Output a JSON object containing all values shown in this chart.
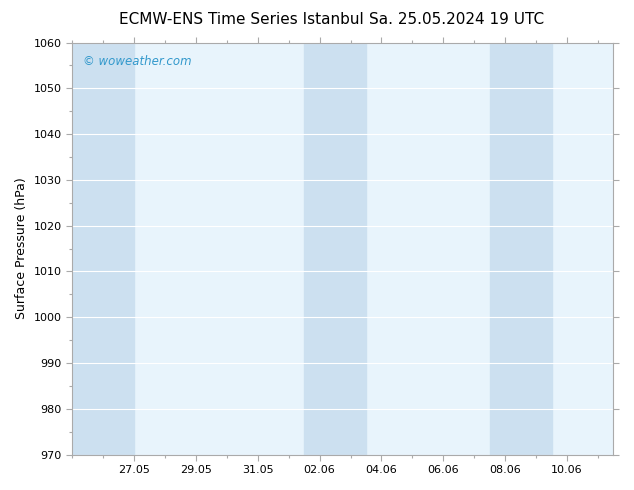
{
  "title_left": "ECMW-ENS Time Series Istanbul",
  "title_right": "Sa. 25.05.2024 19 UTC",
  "ylabel": "Surface Pressure (hPa)",
  "ylim": [
    970,
    1060
  ],
  "yticks": [
    970,
    980,
    990,
    1000,
    1010,
    1020,
    1030,
    1040,
    1050,
    1060
  ],
  "xtick_labels": [
    "27.05",
    "29.05",
    "31.05",
    "02.06",
    "04.06",
    "06.06",
    "08.06",
    "10.06"
  ],
  "xtick_positions": [
    2,
    4,
    6,
    8,
    10,
    12,
    14,
    16
  ],
  "xlim": [
    0.0,
    17.5
  ],
  "shaded_bands": [
    {
      "x_start": 0.0,
      "x_end": 2.0
    },
    {
      "x_start": 7.5,
      "x_end": 9.5
    },
    {
      "x_start": 13.5,
      "x_end": 15.5
    }
  ],
  "shade_color": "#cce0f0",
  "background_color": "#ffffff",
  "plot_bg_color": "#e8f4fc",
  "grid_color": "#ffffff",
  "watermark_text": "© woweather.com",
  "watermark_color": "#3399cc",
  "title_fontsize": 11,
  "tick_label_fontsize": 8,
  "ylabel_fontsize": 9,
  "spine_color": "#aaaaaa"
}
